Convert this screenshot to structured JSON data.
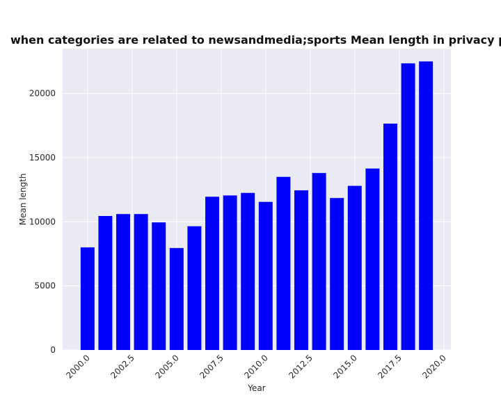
{
  "chart_data": {
    "type": "bar",
    "title": "when categories are related to newsandmedia;sports Mean length in privacy policies by Year",
    "xlabel": "Year",
    "ylabel": "Mean length",
    "x": [
      2000,
      2001,
      2002,
      2003,
      2004,
      2005,
      2006,
      2007,
      2008,
      2009,
      2010,
      2011,
      2012,
      2013,
      2014,
      2015,
      2016,
      2017,
      2018,
      2019
    ],
    "values": [
      8000,
      10450,
      10600,
      10600,
      9950,
      7950,
      9650,
      11950,
      12050,
      12250,
      11550,
      13500,
      12450,
      13800,
      11850,
      12800,
      14150,
      17650,
      22350,
      22500
    ],
    "xlim": [
      1998.6,
      2020.4
    ],
    "ylim": [
      0,
      23500
    ],
    "xticks": [
      "2000.0",
      "2002.5",
      "2005.0",
      "2007.5",
      "2010.0",
      "2012.5",
      "2015.0",
      "2017.5",
      "2020.0"
    ],
    "yticks": [
      "0",
      "5000",
      "10000",
      "15000",
      "20000"
    ],
    "grid": true,
    "colors": {
      "bar": "#0000ff",
      "plot_background": "#eaeaf2",
      "grid": "#ffffff"
    }
  }
}
